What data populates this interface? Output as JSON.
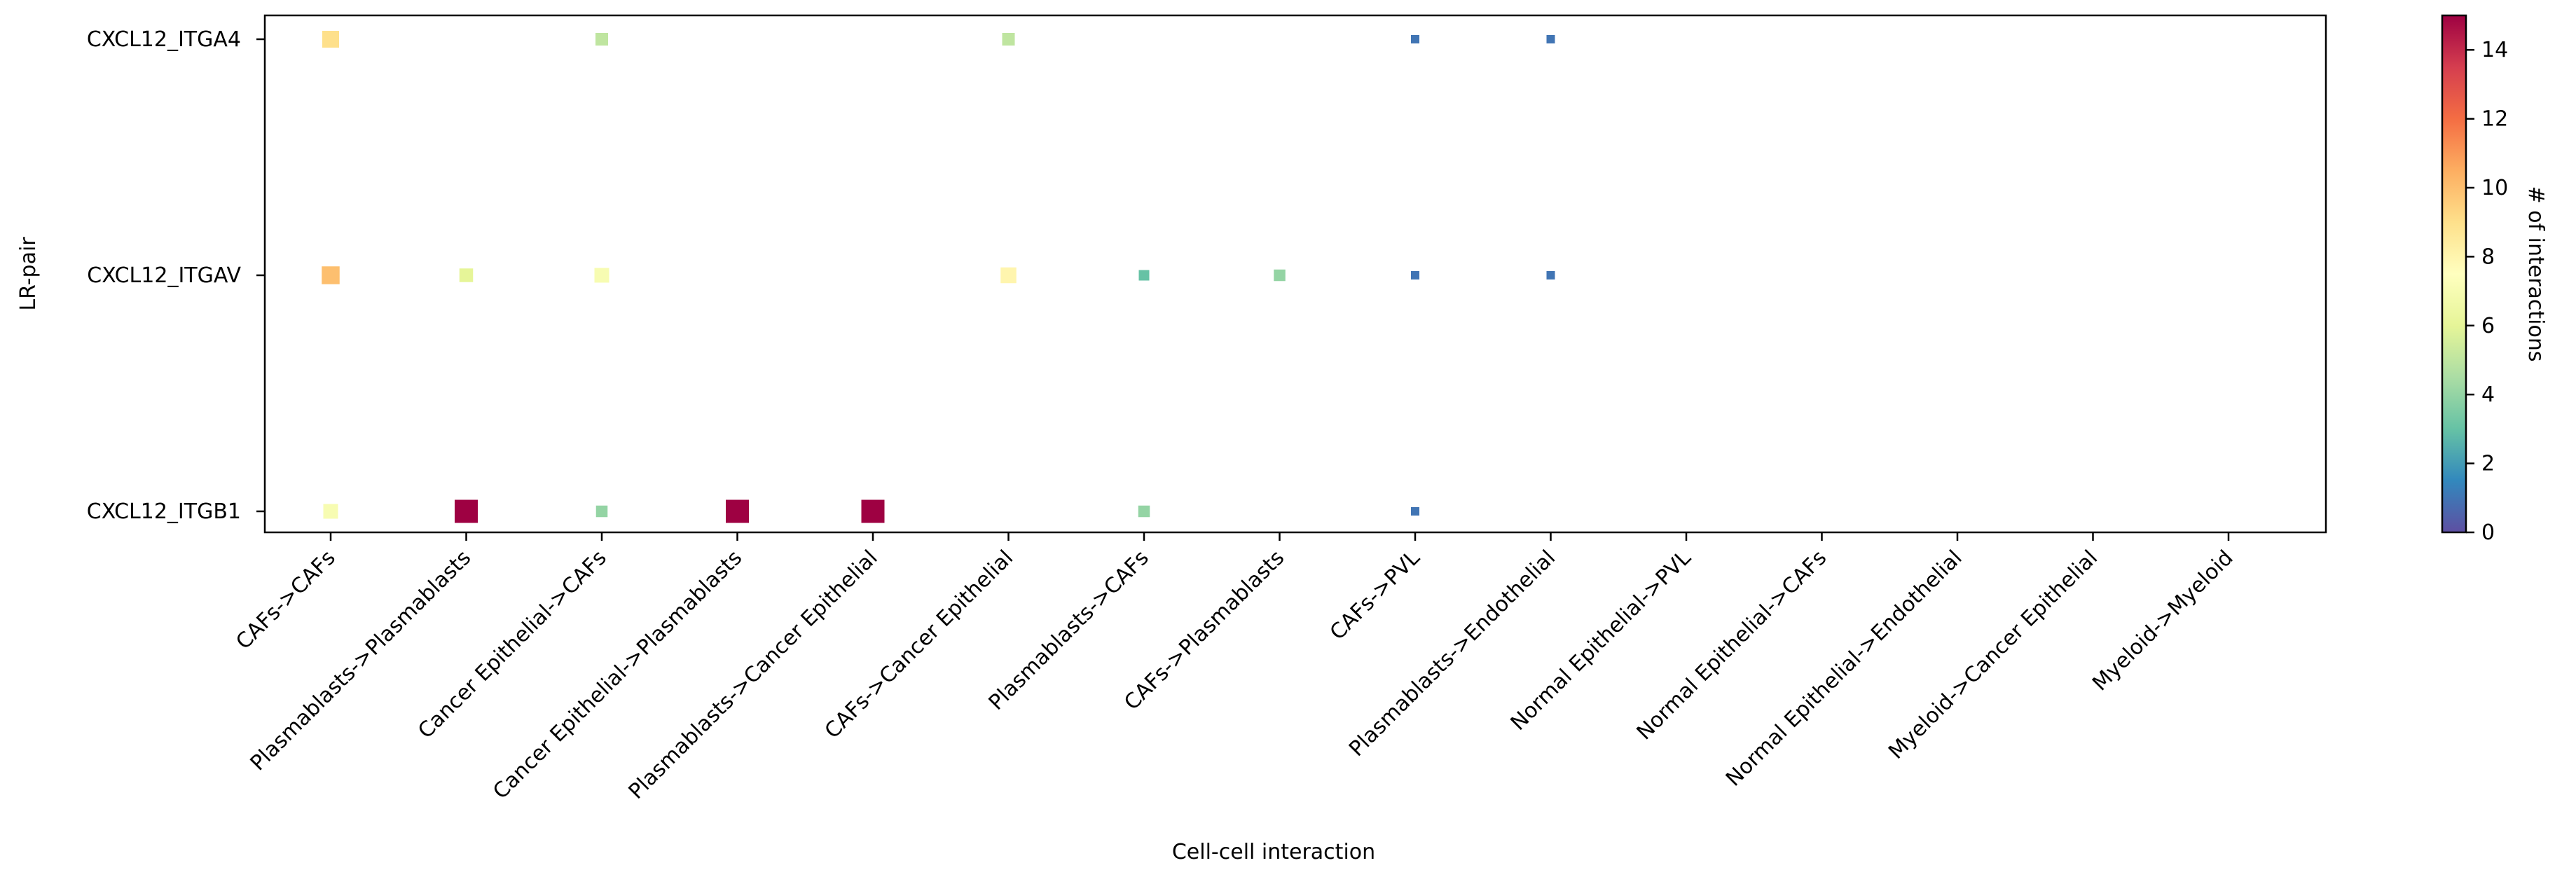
{
  "chart_data": {
    "type": "scatter",
    "xlabel": "Cell-cell interaction",
    "ylabel": "LR-pair",
    "categories": [
      "CAFs->CAFs",
      "Plasmablasts->Plasmablasts",
      "Cancer Epithelial->CAFs",
      "Cancer Epithelial->Plasmablasts",
      "Plasmablasts->Cancer Epithelial",
      "CAFs->Cancer Epithelial",
      "Plasmablasts->CAFs",
      "CAFs->Plasmablasts",
      "CAFs->PVL",
      "Plasmablasts->Endothelial",
      "Normal Epithelial->PVL",
      "Normal Epithelial->CAFs",
      "Normal Epithelial->Endothelial",
      "Myeloid->Cancer Epithelial",
      "Myeloid->Myeloid"
    ],
    "rows": [
      "CXCL12_ITGA4",
      "CXCL12_ITGAV",
      "CXCL12_ITGB1"
    ],
    "points": [
      {
        "x": "CAFs->CAFs",
        "y": "CXCL12_ITGA4",
        "value": 9
      },
      {
        "x": "Cancer Epithelial->CAFs",
        "y": "CXCL12_ITGA4",
        "value": 5
      },
      {
        "x": "CAFs->Cancer Epithelial",
        "y": "CXCL12_ITGA4",
        "value": 5
      },
      {
        "x": "CAFs->PVL",
        "y": "CXCL12_ITGA4",
        "value": 1
      },
      {
        "x": "Plasmablasts->Endothelial",
        "y": "CXCL12_ITGA4",
        "value": 1
      },
      {
        "x": "CAFs->CAFs",
        "y": "CXCL12_ITGAV",
        "value": 10
      },
      {
        "x": "Plasmablasts->Plasmablasts",
        "y": "CXCL12_ITGAV",
        "value": 6
      },
      {
        "x": "Cancer Epithelial->CAFs",
        "y": "CXCL12_ITGAV",
        "value": 7
      },
      {
        "x": "CAFs->Cancer Epithelial",
        "y": "CXCL12_ITGAV",
        "value": 8
      },
      {
        "x": "Plasmablasts->CAFs",
        "y": "CXCL12_ITGAV",
        "value": 3
      },
      {
        "x": "CAFs->Plasmablasts",
        "y": "CXCL12_ITGAV",
        "value": 4
      },
      {
        "x": "CAFs->PVL",
        "y": "CXCL12_ITGAV",
        "value": 1
      },
      {
        "x": "Plasmablasts->Endothelial",
        "y": "CXCL12_ITGAV",
        "value": 1
      },
      {
        "x": "CAFs->CAFs",
        "y": "CXCL12_ITGB1",
        "value": 7
      },
      {
        "x": "Plasmablasts->Plasmablasts",
        "y": "CXCL12_ITGB1",
        "value": 15
      },
      {
        "x": "Cancer Epithelial->CAFs",
        "y": "CXCL12_ITGB1",
        "value": 4
      },
      {
        "x": "Cancer Epithelial->Plasmablasts",
        "y": "CXCL12_ITGB1",
        "value": 15
      },
      {
        "x": "Plasmablasts->Cancer Epithelial",
        "y": "CXCL12_ITGB1",
        "value": 15
      },
      {
        "x": "Plasmablasts->CAFs",
        "y": "CXCL12_ITGB1",
        "value": 4
      },
      {
        "x": "CAFs->PVL",
        "y": "CXCL12_ITGB1",
        "value": 1
      }
    ],
    "colorbar": {
      "label": "# of interactions",
      "range": [
        0,
        15
      ],
      "ticks": [
        "0",
        "2",
        "4",
        "6",
        "8",
        "10",
        "12",
        "14"
      ],
      "colormap": "Spectral_r"
    },
    "grid": false,
    "legend": "colorbar-right"
  }
}
